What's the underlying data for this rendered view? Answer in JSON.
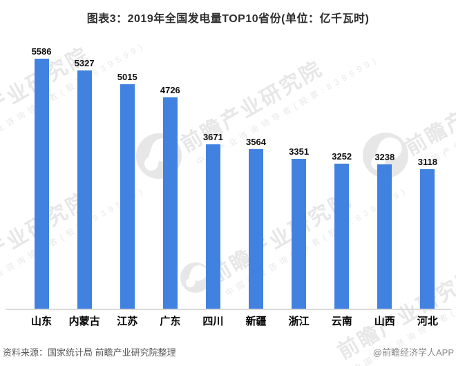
{
  "chart_data": {
    "type": "bar",
    "title": "图表3：2019年全国发电量TOP10省份(单位：亿千瓦时)",
    "unit": "亿千瓦时",
    "categories": [
      "山东",
      "内蒙古",
      "江苏",
      "广东",
      "四川",
      "新疆",
      "浙江",
      "云南",
      "山西",
      "河北"
    ],
    "values": [
      5586,
      5327,
      5015,
      4726,
      3671,
      3564,
      3351,
      3252,
      3238,
      3118
    ],
    "ylim": [
      0,
      5900
    ],
    "grid": false,
    "legend": false,
    "value_labels_shown": true,
    "bar_color": "#4181e0"
  },
  "footer": {
    "source": "资料来源：国家统计局 前瞻产业研究院整理",
    "credit": "@前瞻经济学人APP"
  },
  "watermark": {
    "brand": "前瞻产业研究院",
    "tagline": "中国产业咨询领导者(股票:839599)"
  },
  "colors": {
    "bar": "#4181e0",
    "axis_line": "#dadada",
    "title_text": "#2e2e2e",
    "value_label_text": "#0d0d0d",
    "category_label_text": "#000000",
    "source_text": "#595959",
    "credit_text": "#8a8a8a",
    "watermark": "#e7e7e7"
  }
}
